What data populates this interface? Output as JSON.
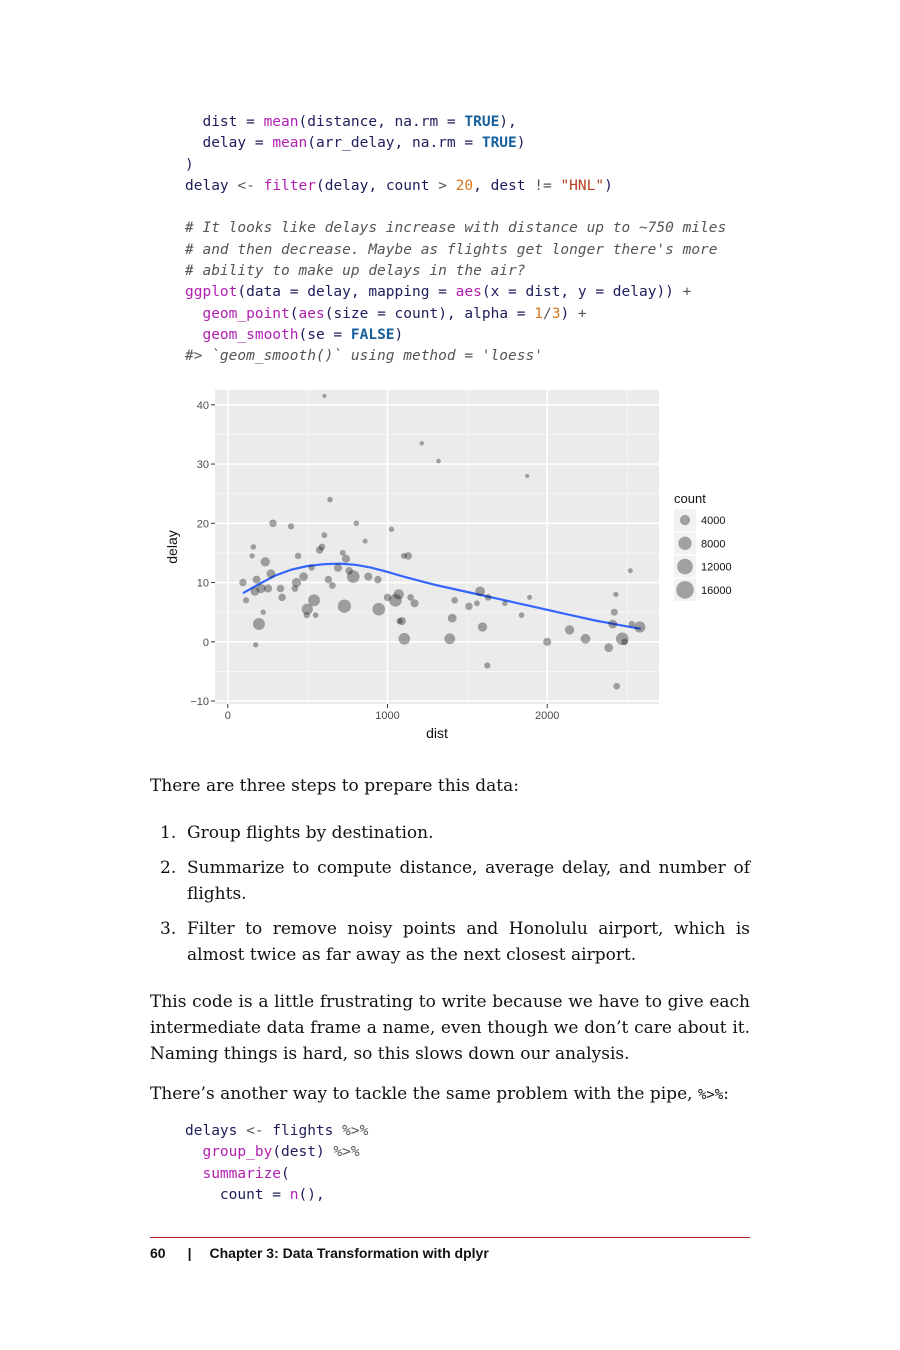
{
  "code_top": {
    "lines": [
      [
        {
          "t": "  dist = ",
          "c": ""
        },
        {
          "t": "mean",
          "c": "fn"
        },
        {
          "t": "(distance, na.rm = ",
          "c": ""
        },
        {
          "t": "TRUE",
          "c": "kw"
        },
        {
          "t": "),",
          "c": ""
        }
      ],
      [
        {
          "t": "  delay = ",
          "c": ""
        },
        {
          "t": "mean",
          "c": "fn"
        },
        {
          "t": "(arr_delay, na.rm = ",
          "c": ""
        },
        {
          "t": "TRUE",
          "c": "kw"
        },
        {
          "t": ")",
          "c": ""
        }
      ],
      [
        {
          "t": ")",
          "c": ""
        }
      ],
      [
        {
          "t": "delay ",
          "c": ""
        },
        {
          "t": "<-",
          "c": "op"
        },
        {
          "t": " ",
          "c": ""
        },
        {
          "t": "filter",
          "c": "fn"
        },
        {
          "t": "(delay, count ",
          "c": ""
        },
        {
          "t": ">",
          "c": "op"
        },
        {
          "t": " ",
          "c": ""
        },
        {
          "t": "20",
          "c": "num"
        },
        {
          "t": ", dest ",
          "c": ""
        },
        {
          "t": "!=",
          "c": "op"
        },
        {
          "t": " ",
          "c": ""
        },
        {
          "t": "\"HNL\"",
          "c": "str"
        },
        {
          "t": ")",
          "c": ""
        }
      ],
      [
        {
          "t": "",
          "c": ""
        }
      ],
      [
        {
          "t": "# It looks like delays increase with distance up to ~750 miles",
          "c": "cm"
        }
      ],
      [
        {
          "t": "# and then decrease. Maybe as flights get longer there's more",
          "c": "cm"
        }
      ],
      [
        {
          "t": "# ability to make up delays in the air?",
          "c": "cm"
        }
      ],
      [
        {
          "t": "ggplot",
          "c": "fn"
        },
        {
          "t": "(data = delay, mapping = ",
          "c": ""
        },
        {
          "t": "aes",
          "c": "fn"
        },
        {
          "t": "(x = dist, y = delay)) ",
          "c": ""
        },
        {
          "t": "+",
          "c": "op"
        }
      ],
      [
        {
          "t": "  ",
          "c": ""
        },
        {
          "t": "geom_point",
          "c": "fn"
        },
        {
          "t": "(",
          "c": ""
        },
        {
          "t": "aes",
          "c": "fn"
        },
        {
          "t": "(size = count), alpha = ",
          "c": ""
        },
        {
          "t": "1",
          "c": "num"
        },
        {
          "t": "/",
          "c": "op"
        },
        {
          "t": "3",
          "c": "num"
        },
        {
          "t": ") ",
          "c": ""
        },
        {
          "t": "+",
          "c": "op"
        }
      ],
      [
        {
          "t": "  ",
          "c": ""
        },
        {
          "t": "geom_smooth",
          "c": "fn"
        },
        {
          "t": "(se = ",
          "c": ""
        },
        {
          "t": "FALSE",
          "c": "kw"
        },
        {
          "t": ")",
          "c": ""
        }
      ],
      [
        {
          "t": "#> `geom_smooth()` using method = 'loess'",
          "c": "cm"
        }
      ]
    ]
  },
  "chart_data": {
    "type": "scatter",
    "title": "",
    "xlabel": "dist",
    "ylabel": "delay",
    "xlim": [
      -80,
      2700
    ],
    "ylim": [
      -10.5,
      42.5
    ],
    "x_ticks": [
      0,
      1000,
      2000
    ],
    "x_tick_labels": [
      "0",
      "1000",
      "2000"
    ],
    "y_ticks": [
      -10,
      0,
      10,
      20,
      30,
      40
    ],
    "y_tick_labels": [
      "−10",
      "0",
      "10",
      "20",
      "30",
      "40"
    ],
    "grid": true,
    "legend": {
      "title": "count",
      "placement": "right",
      "entries": [
        {
          "label": "4000",
          "value": 4000
        },
        {
          "label": "8000",
          "value": 8000
        },
        {
          "label": "12000",
          "value": 12000
        },
        {
          "label": "16000",
          "value": 16000
        }
      ]
    },
    "point_alpha": 0.333,
    "point_color": "#000000",
    "smooth_color": "#3366ff",
    "panel_color": "#ebebeb",
    "points": [
      {
        "x": 605,
        "y": 41.5,
        "count": 100
      },
      {
        "x": 1215,
        "y": 33.5,
        "count": 150
      },
      {
        "x": 1320,
        "y": 30.5,
        "count": 200
      },
      {
        "x": 1875,
        "y": 28,
        "count": 80
      },
      {
        "x": 640,
        "y": 24,
        "count": 500
      },
      {
        "x": 283,
        "y": 20,
        "count": 1500
      },
      {
        "x": 396,
        "y": 19.5,
        "count": 800
      },
      {
        "x": 805,
        "y": 20,
        "count": 500
      },
      {
        "x": 1025,
        "y": 19,
        "count": 400
      },
      {
        "x": 160,
        "y": 16,
        "count": 500
      },
      {
        "x": 605,
        "y": 18,
        "count": 600
      },
      {
        "x": 860,
        "y": 17,
        "count": 300
      },
      {
        "x": 590,
        "y": 16,
        "count": 1000
      },
      {
        "x": 235,
        "y": 13.5,
        "count": 3000
      },
      {
        "x": 152,
        "y": 14.5,
        "count": 400
      },
      {
        "x": 440,
        "y": 14.5,
        "count": 900
      },
      {
        "x": 575,
        "y": 15.5,
        "count": 1500
      },
      {
        "x": 720,
        "y": 15,
        "count": 700
      },
      {
        "x": 1130,
        "y": 14.5,
        "count": 1500
      },
      {
        "x": 1103,
        "y": 14.5,
        "count": 700
      },
      {
        "x": 740,
        "y": 14,
        "count": 2000
      },
      {
        "x": 2520,
        "y": 12,
        "count": 300
      },
      {
        "x": 270,
        "y": 11.5,
        "count": 2500
      },
      {
        "x": 525,
        "y": 12.5,
        "count": 800
      },
      {
        "x": 690,
        "y": 12.5,
        "count": 2000
      },
      {
        "x": 760,
        "y": 12,
        "count": 1500
      },
      {
        "x": 785,
        "y": 11,
        "count": 7000
      },
      {
        "x": 880,
        "y": 11,
        "count": 2000
      },
      {
        "x": 95,
        "y": 10,
        "count": 1500
      },
      {
        "x": 180,
        "y": 10.5,
        "count": 1800
      },
      {
        "x": 430,
        "y": 10,
        "count": 3000
      },
      {
        "x": 475,
        "y": 11,
        "count": 2500
      },
      {
        "x": 630,
        "y": 10.5,
        "count": 1500
      },
      {
        "x": 940,
        "y": 10.5,
        "count": 1500
      },
      {
        "x": 655,
        "y": 9.5,
        "count": 1000
      },
      {
        "x": 170,
        "y": 8.5,
        "count": 2500
      },
      {
        "x": 208,
        "y": 9,
        "count": 3000
      },
      {
        "x": 252,
        "y": 9,
        "count": 2000
      },
      {
        "x": 330,
        "y": 9,
        "count": 1500
      },
      {
        "x": 420,
        "y": 9,
        "count": 1000
      },
      {
        "x": 1070,
        "y": 8,
        "count": 4000
      },
      {
        "x": 1000,
        "y": 7.5,
        "count": 1500
      },
      {
        "x": 1050,
        "y": 7,
        "count": 7000
      },
      {
        "x": 340,
        "y": 7.5,
        "count": 1500
      },
      {
        "x": 1145,
        "y": 7.5,
        "count": 1000
      },
      {
        "x": 1580,
        "y": 8.5,
        "count": 3500
      },
      {
        "x": 2430,
        "y": 8,
        "count": 400
      },
      {
        "x": 1890,
        "y": 7.5,
        "count": 300
      },
      {
        "x": 115,
        "y": 7,
        "count": 800
      },
      {
        "x": 1420,
        "y": 7,
        "count": 1000
      },
      {
        "x": 1630,
        "y": 7.5,
        "count": 1000
      },
      {
        "x": 540,
        "y": 7,
        "count": 6000
      },
      {
        "x": 1170,
        "y": 6.5,
        "count": 2000
      },
      {
        "x": 1510,
        "y": 6,
        "count": 1500
      },
      {
        "x": 1560,
        "y": 6.5,
        "count": 600
      },
      {
        "x": 1735,
        "y": 6.5,
        "count": 500
      },
      {
        "x": 730,
        "y": 6,
        "count": 8000
      },
      {
        "x": 945,
        "y": 5.5,
        "count": 7000
      },
      {
        "x": 498,
        "y": 5.5,
        "count": 5000
      },
      {
        "x": 2420,
        "y": 5,
        "count": 1200
      },
      {
        "x": 222,
        "y": 5,
        "count": 400
      },
      {
        "x": 494,
        "y": 4.5,
        "count": 800
      },
      {
        "x": 550,
        "y": 4.5,
        "count": 500
      },
      {
        "x": 1840,
        "y": 4.5,
        "count": 500
      },
      {
        "x": 1405,
        "y": 4,
        "count": 2500
      },
      {
        "x": 1075,
        "y": 3.5,
        "count": 800
      },
      {
        "x": 1090,
        "y": 3.5,
        "count": 2000
      },
      {
        "x": 195,
        "y": 3,
        "count": 6000
      },
      {
        "x": 2410,
        "y": 3,
        "count": 2500
      },
      {
        "x": 2530,
        "y": 3,
        "count": 800
      },
      {
        "x": 2580,
        "y": 2.5,
        "count": 5000
      },
      {
        "x": 1595,
        "y": 2.5,
        "count": 3000
      },
      {
        "x": 2140,
        "y": 2,
        "count": 3000
      },
      {
        "x": 1105,
        "y": 0.5,
        "count": 5500
      },
      {
        "x": 1390,
        "y": 0.5,
        "count": 4500
      },
      {
        "x": 2000,
        "y": 0,
        "count": 2000
      },
      {
        "x": 2240,
        "y": 0.5,
        "count": 3500
      },
      {
        "x": 2470,
        "y": 0.5,
        "count": 7000
      },
      {
        "x": 2485,
        "y": 0,
        "count": 1000
      },
      {
        "x": 175,
        "y": -0.5,
        "count": 400
      },
      {
        "x": 2385,
        "y": -1,
        "count": 2500
      },
      {
        "x": 1625,
        "y": -4,
        "count": 800
      },
      {
        "x": 2435,
        "y": -7.5,
        "count": 1000
      }
    ],
    "smooth": [
      {
        "x": 95,
        "y": 8.2
      },
      {
        "x": 200,
        "y": 9.8
      },
      {
        "x": 300,
        "y": 11.2
      },
      {
        "x": 400,
        "y": 12.2
      },
      {
        "x": 500,
        "y": 12.8
      },
      {
        "x": 600,
        "y": 13.1
      },
      {
        "x": 700,
        "y": 13.2
      },
      {
        "x": 800,
        "y": 13.0
      },
      {
        "x": 900,
        "y": 12.5
      },
      {
        "x": 1000,
        "y": 11.8
      },
      {
        "x": 1100,
        "y": 11.0
      },
      {
        "x": 1200,
        "y": 10.3
      },
      {
        "x": 1300,
        "y": 9.6
      },
      {
        "x": 1400,
        "y": 9.0
      },
      {
        "x": 1500,
        "y": 8.4
      },
      {
        "x": 1600,
        "y": 7.8
      },
      {
        "x": 1700,
        "y": 7.2
      },
      {
        "x": 1800,
        "y": 6.6
      },
      {
        "x": 1900,
        "y": 6.0
      },
      {
        "x": 2000,
        "y": 5.4
      },
      {
        "x": 2100,
        "y": 4.8
      },
      {
        "x": 2200,
        "y": 4.2
      },
      {
        "x": 2300,
        "y": 3.6
      },
      {
        "x": 2400,
        "y": 3.1
      },
      {
        "x": 2500,
        "y": 2.6
      },
      {
        "x": 2586,
        "y": 2.2
      }
    ]
  },
  "prose": {
    "intro": "There are three steps to prepare this data:",
    "steps": [
      {
        "num": "1.",
        "text": "Group flights by destination."
      },
      {
        "num": "2.",
        "text": "Summarize to compute distance, average delay, and number of flights."
      },
      {
        "num": "3.",
        "text": "Filter to remove noisy points and Honolulu airport, which is almost twice as far away as the next closest airport."
      }
    ],
    "para1": "This code is a little frustrating to write because we have to give each intermediate data frame a name, even though we don’t care about it. Naming things is hard, so this slows down our analysis.",
    "para2_text": "There’s another way to tackle the same problem with the pipe, ",
    "para2_code": "%>%",
    "para2_end": ":"
  },
  "code_bottom": {
    "lines": [
      [
        {
          "t": "delays ",
          "c": ""
        },
        {
          "t": "<-",
          "c": "op"
        },
        {
          "t": " flights ",
          "c": ""
        },
        {
          "t": "%>%",
          "c": "op"
        }
      ],
      [
        {
          "t": "  ",
          "c": ""
        },
        {
          "t": "group_by",
          "c": "fn"
        },
        {
          "t": "(dest) ",
          "c": ""
        },
        {
          "t": "%>%",
          "c": "op"
        }
      ],
      [
        {
          "t": "  ",
          "c": ""
        },
        {
          "t": "summarize",
          "c": "fn"
        },
        {
          "t": "(",
          "c": ""
        }
      ],
      [
        {
          "t": "    count = ",
          "c": ""
        },
        {
          "t": "n",
          "c": "fn"
        },
        {
          "t": "(),",
          "c": ""
        }
      ]
    ]
  },
  "footer": {
    "page_number": "60",
    "separator": "|",
    "chapter": "Chapter 3: Data Transformation with dplyr"
  }
}
